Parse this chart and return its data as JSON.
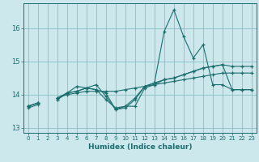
{
  "bg_color": "#cde8ec",
  "grid_color": "#7ab8be",
  "line_color": "#1a6e6e",
  "xlabel": "Humidex (Indice chaleur)",
  "ylim": [
    12.85,
    16.75
  ],
  "xlim": [
    -0.5,
    23.5
  ],
  "yticks": [
    13,
    14,
    15,
    16
  ],
  "xticks": [
    0,
    1,
    2,
    3,
    4,
    5,
    6,
    7,
    8,
    9,
    10,
    11,
    12,
    13,
    14,
    15,
    16,
    17,
    18,
    19,
    20,
    21,
    22,
    23
  ],
  "y_jagged": [
    13.65,
    13.75,
    null,
    13.85,
    14.05,
    14.25,
    14.2,
    14.15,
    14.05,
    13.55,
    13.6,
    13.85,
    14.25,
    14.35,
    15.9,
    16.55,
    15.75,
    15.1,
    15.5,
    14.3,
    14.3,
    14.15,
    14.15,
    14.15
  ],
  "y_upper": [
    13.65,
    13.75,
    null,
    13.9,
    14.05,
    14.1,
    14.2,
    14.3,
    13.95,
    13.55,
    13.65,
    13.65,
    14.2,
    14.3,
    14.45,
    14.5,
    14.6,
    14.7,
    14.8,
    14.85,
    14.9,
    14.85,
    14.85,
    14.85
  ],
  "y_lower": [
    13.65,
    13.75,
    null,
    13.85,
    14.05,
    14.1,
    14.2,
    14.15,
    13.85,
    13.6,
    13.65,
    13.9,
    14.25,
    14.35,
    14.45,
    14.5,
    14.6,
    14.7,
    14.8,
    14.85,
    14.9,
    14.15,
    14.15,
    14.15
  ],
  "y_trend": [
    13.6,
    13.7,
    null,
    13.9,
    14.0,
    14.05,
    14.1,
    14.1,
    14.1,
    14.1,
    14.15,
    14.2,
    14.25,
    14.3,
    14.35,
    14.4,
    14.45,
    14.5,
    14.55,
    14.6,
    14.65,
    14.65,
    14.65,
    14.65
  ]
}
